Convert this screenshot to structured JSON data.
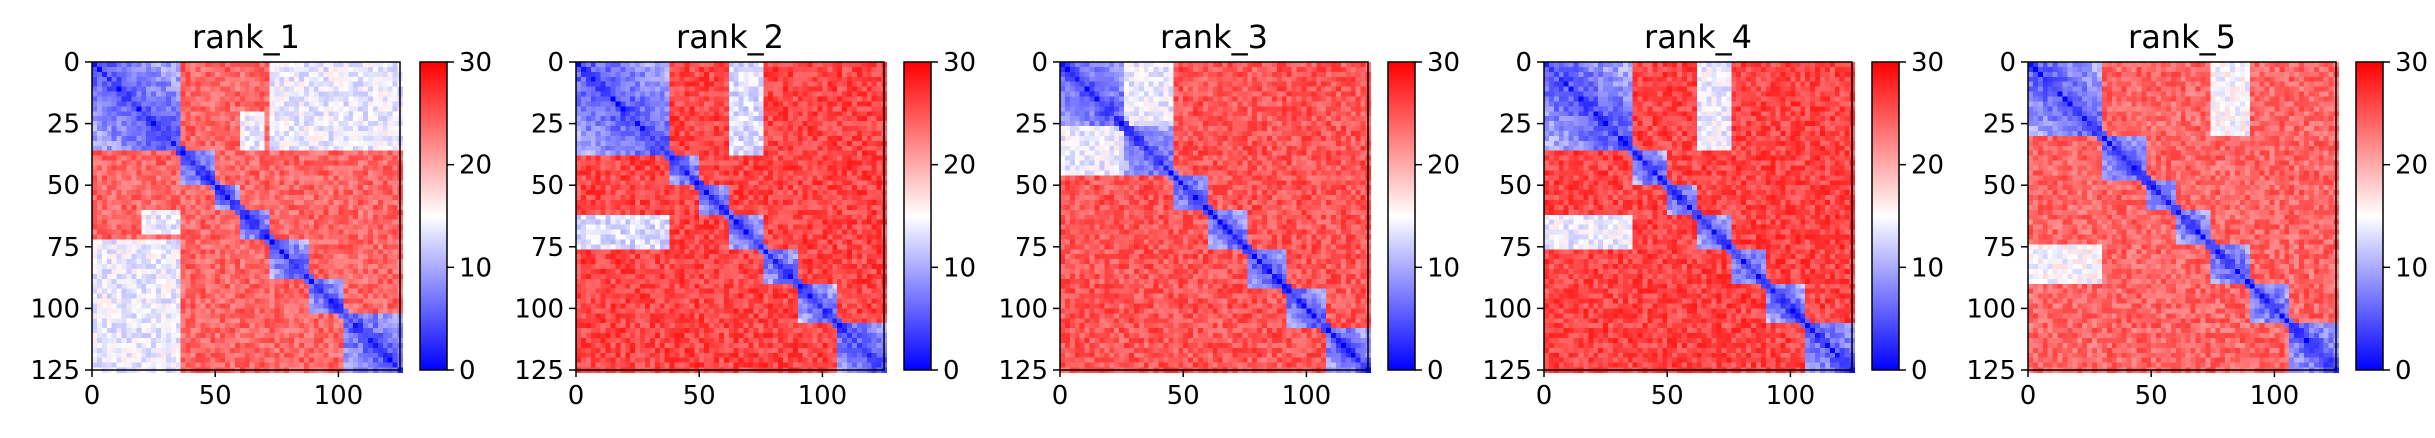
{
  "chart_data": [
    {
      "type": "heatmap",
      "title": "rank_1",
      "xlabel": "",
      "ylabel": "",
      "x_ticks": [
        "0",
        "50",
        "100"
      ],
      "y_ticks": [
        "0",
        "25",
        "50",
        "75",
        "100",
        "125"
      ],
      "xlim": [
        0,
        125
      ],
      "ylim": [
        125,
        0
      ],
      "colorbar": {
        "min": 0,
        "max": 30,
        "ticks": [
          "0",
          "10",
          "20",
          "30"
        ],
        "colors": [
          "#0000ff",
          "#ffffff",
          "#ff0000"
        ]
      },
      "values": {
        "size": 125,
        "diagonal_blocks": [
          [
            0,
            35
          ],
          [
            35,
            50
          ],
          [
            50,
            60
          ],
          [
            60,
            72
          ],
          [
            72,
            88
          ],
          [
            88,
            102
          ],
          [
            102,
            125
          ]
        ],
        "cross_blocks": [
          {
            "from": [
              0,
              35
            ],
            "to": [
              72,
              125
            ],
            "value": 14
          },
          {
            "from": [
              20,
              35
            ],
            "to": [
              60,
              70
            ],
            "value": 14
          }
        ],
        "background": 24,
        "diagonal": 2
      }
    },
    {
      "type": "heatmap",
      "title": "rank_2",
      "xlabel": "",
      "ylabel": "",
      "x_ticks": [
        "0",
        "50",
        "100"
      ],
      "y_ticks": [
        "0",
        "25",
        "50",
        "75",
        "100",
        "125"
      ],
      "xlim": [
        0,
        125
      ],
      "ylim": [
        125,
        0
      ],
      "colorbar": {
        "min": 0,
        "max": 30,
        "ticks": [
          "0",
          "10",
          "20",
          "30"
        ],
        "colors": [
          "#0000ff",
          "#ffffff",
          "#ff0000"
        ]
      },
      "values": {
        "size": 125,
        "diagonal_blocks": [
          [
            0,
            38
          ],
          [
            38,
            50
          ],
          [
            50,
            62
          ],
          [
            62,
            75
          ],
          [
            75,
            90
          ],
          [
            90,
            105
          ],
          [
            105,
            125
          ]
        ],
        "cross_blocks": [
          {
            "from": [
              0,
              38
            ],
            "to": [
              62,
              75
            ],
            "value": 13
          }
        ],
        "background": 26,
        "diagonal": 2
      }
    },
    {
      "type": "heatmap",
      "title": "rank_3",
      "xlabel": "",
      "ylabel": "",
      "x_ticks": [
        "0",
        "50",
        "100"
      ],
      "y_ticks": [
        "0",
        "25",
        "50",
        "75",
        "100",
        "125"
      ],
      "xlim": [
        0,
        125
      ],
      "ylim": [
        125,
        0
      ],
      "colorbar": {
        "min": 0,
        "max": 30,
        "ticks": [
          "0",
          "10",
          "20",
          "30"
        ],
        "colors": [
          "#0000ff",
          "#ffffff",
          "#ff0000"
        ]
      },
      "values": {
        "size": 125,
        "diagonal_blocks": [
          [
            0,
            25
          ],
          [
            25,
            45
          ],
          [
            45,
            60
          ],
          [
            60,
            75
          ],
          [
            75,
            92
          ],
          [
            92,
            108
          ],
          [
            108,
            125
          ]
        ],
        "cross_blocks": [
          {
            "from": [
              0,
              25
            ],
            "to": [
              25,
              45
            ],
            "value": 14
          }
        ],
        "background": 25,
        "diagonal": 2
      }
    },
    {
      "type": "heatmap",
      "title": "rank_4",
      "xlabel": "",
      "ylabel": "",
      "x_ticks": [
        "0",
        "50",
        "100"
      ],
      "y_ticks": [
        "0",
        "25",
        "50",
        "75",
        "100",
        "125"
      ],
      "xlim": [
        0,
        125
      ],
      "ylim": [
        125,
        0
      ],
      "colorbar": {
        "min": 0,
        "max": 30,
        "ticks": [
          "0",
          "10",
          "20",
          "30"
        ],
        "colors": [
          "#0000ff",
          "#ffffff",
          "#ff0000"
        ]
      },
      "values": {
        "size": 125,
        "diagonal_blocks": [
          [
            0,
            36
          ],
          [
            36,
            50
          ],
          [
            50,
            62
          ],
          [
            62,
            75
          ],
          [
            75,
            90
          ],
          [
            90,
            105
          ],
          [
            105,
            125
          ]
        ],
        "cross_blocks": [
          {
            "from": [
              0,
              36
            ],
            "to": [
              62,
              75
            ],
            "value": 14
          }
        ],
        "background": 26,
        "diagonal": 2
      }
    },
    {
      "type": "heatmap",
      "title": "rank_5",
      "xlabel": "",
      "ylabel": "",
      "x_ticks": [
        "0",
        "50",
        "100"
      ],
      "y_ticks": [
        "0",
        "25",
        "50",
        "75",
        "100",
        "125"
      ],
      "xlim": [
        0,
        125
      ],
      "ylim": [
        125,
        0
      ],
      "colorbar": {
        "min": 0,
        "max": 30,
        "ticks": [
          "0",
          "10",
          "20",
          "30"
        ],
        "colors": [
          "#0000ff",
          "#ffffff",
          "#ff0000"
        ]
      },
      "values": {
        "size": 125,
        "diagonal_blocks": [
          [
            0,
            30
          ],
          [
            30,
            48
          ],
          [
            48,
            60
          ],
          [
            60,
            74
          ],
          [
            74,
            90
          ],
          [
            90,
            105
          ],
          [
            105,
            125
          ]
        ],
        "cross_blocks": [
          {
            "from": [
              0,
              30
            ],
            "to": [
              74,
              90
            ],
            "value": 15
          }
        ],
        "background": 24,
        "diagonal": 2
      }
    }
  ]
}
